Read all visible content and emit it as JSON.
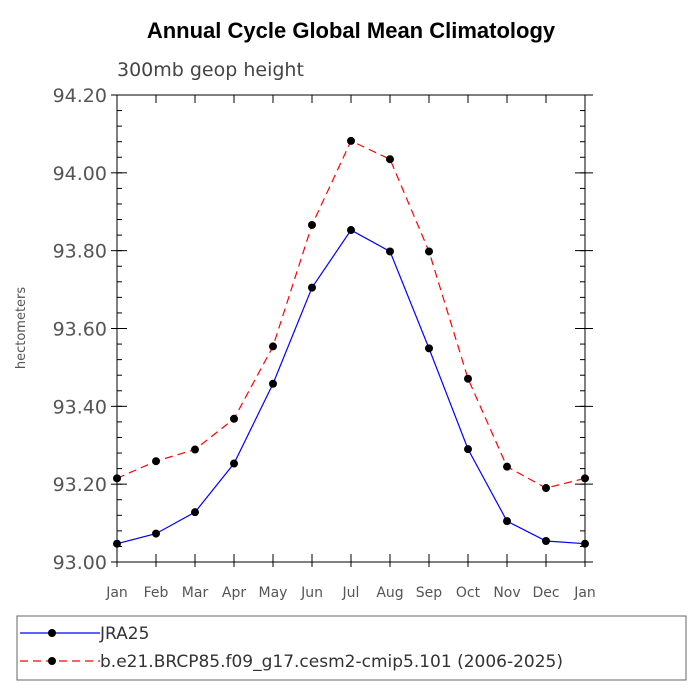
{
  "chart_data": {
    "type": "line",
    "title": "Annual Cycle Global Mean Climatology",
    "subtitle": "300mb geop height",
    "xlabel": "",
    "ylabel": "hectometers",
    "categories": [
      "Jan",
      "Feb",
      "Mar",
      "Apr",
      "May",
      "Jun",
      "Jul",
      "Aug",
      "Sep",
      "Oct",
      "Nov",
      "Dec",
      "Jan"
    ],
    "ylim": [
      93.0,
      94.2
    ],
    "yticks": [
      "93.00",
      "93.20",
      "93.40",
      "93.60",
      "93.80",
      "94.00",
      "94.20"
    ],
    "yticks_values": [
      93.0,
      93.2,
      93.4,
      93.6,
      93.8,
      94.0,
      94.2
    ],
    "legend_position": "bottom",
    "series": [
      {
        "name": "JRA25",
        "color": "#0000ff",
        "dash": "solid",
        "values": [
          93.047,
          93.073,
          93.128,
          93.253,
          93.458,
          93.705,
          93.853,
          93.798,
          93.549,
          93.29,
          93.105,
          93.054,
          93.047
        ]
      },
      {
        "name": "b.e21.BRCP85.f09_g17.cesm2-cmip5.101 (2006-2025)",
        "color": "#ff0000",
        "dash": "dashed",
        "values": [
          93.215,
          93.259,
          93.289,
          93.368,
          93.554,
          93.866,
          94.082,
          94.035,
          93.798,
          93.471,
          93.245,
          93.19,
          93.215
        ]
      }
    ]
  }
}
